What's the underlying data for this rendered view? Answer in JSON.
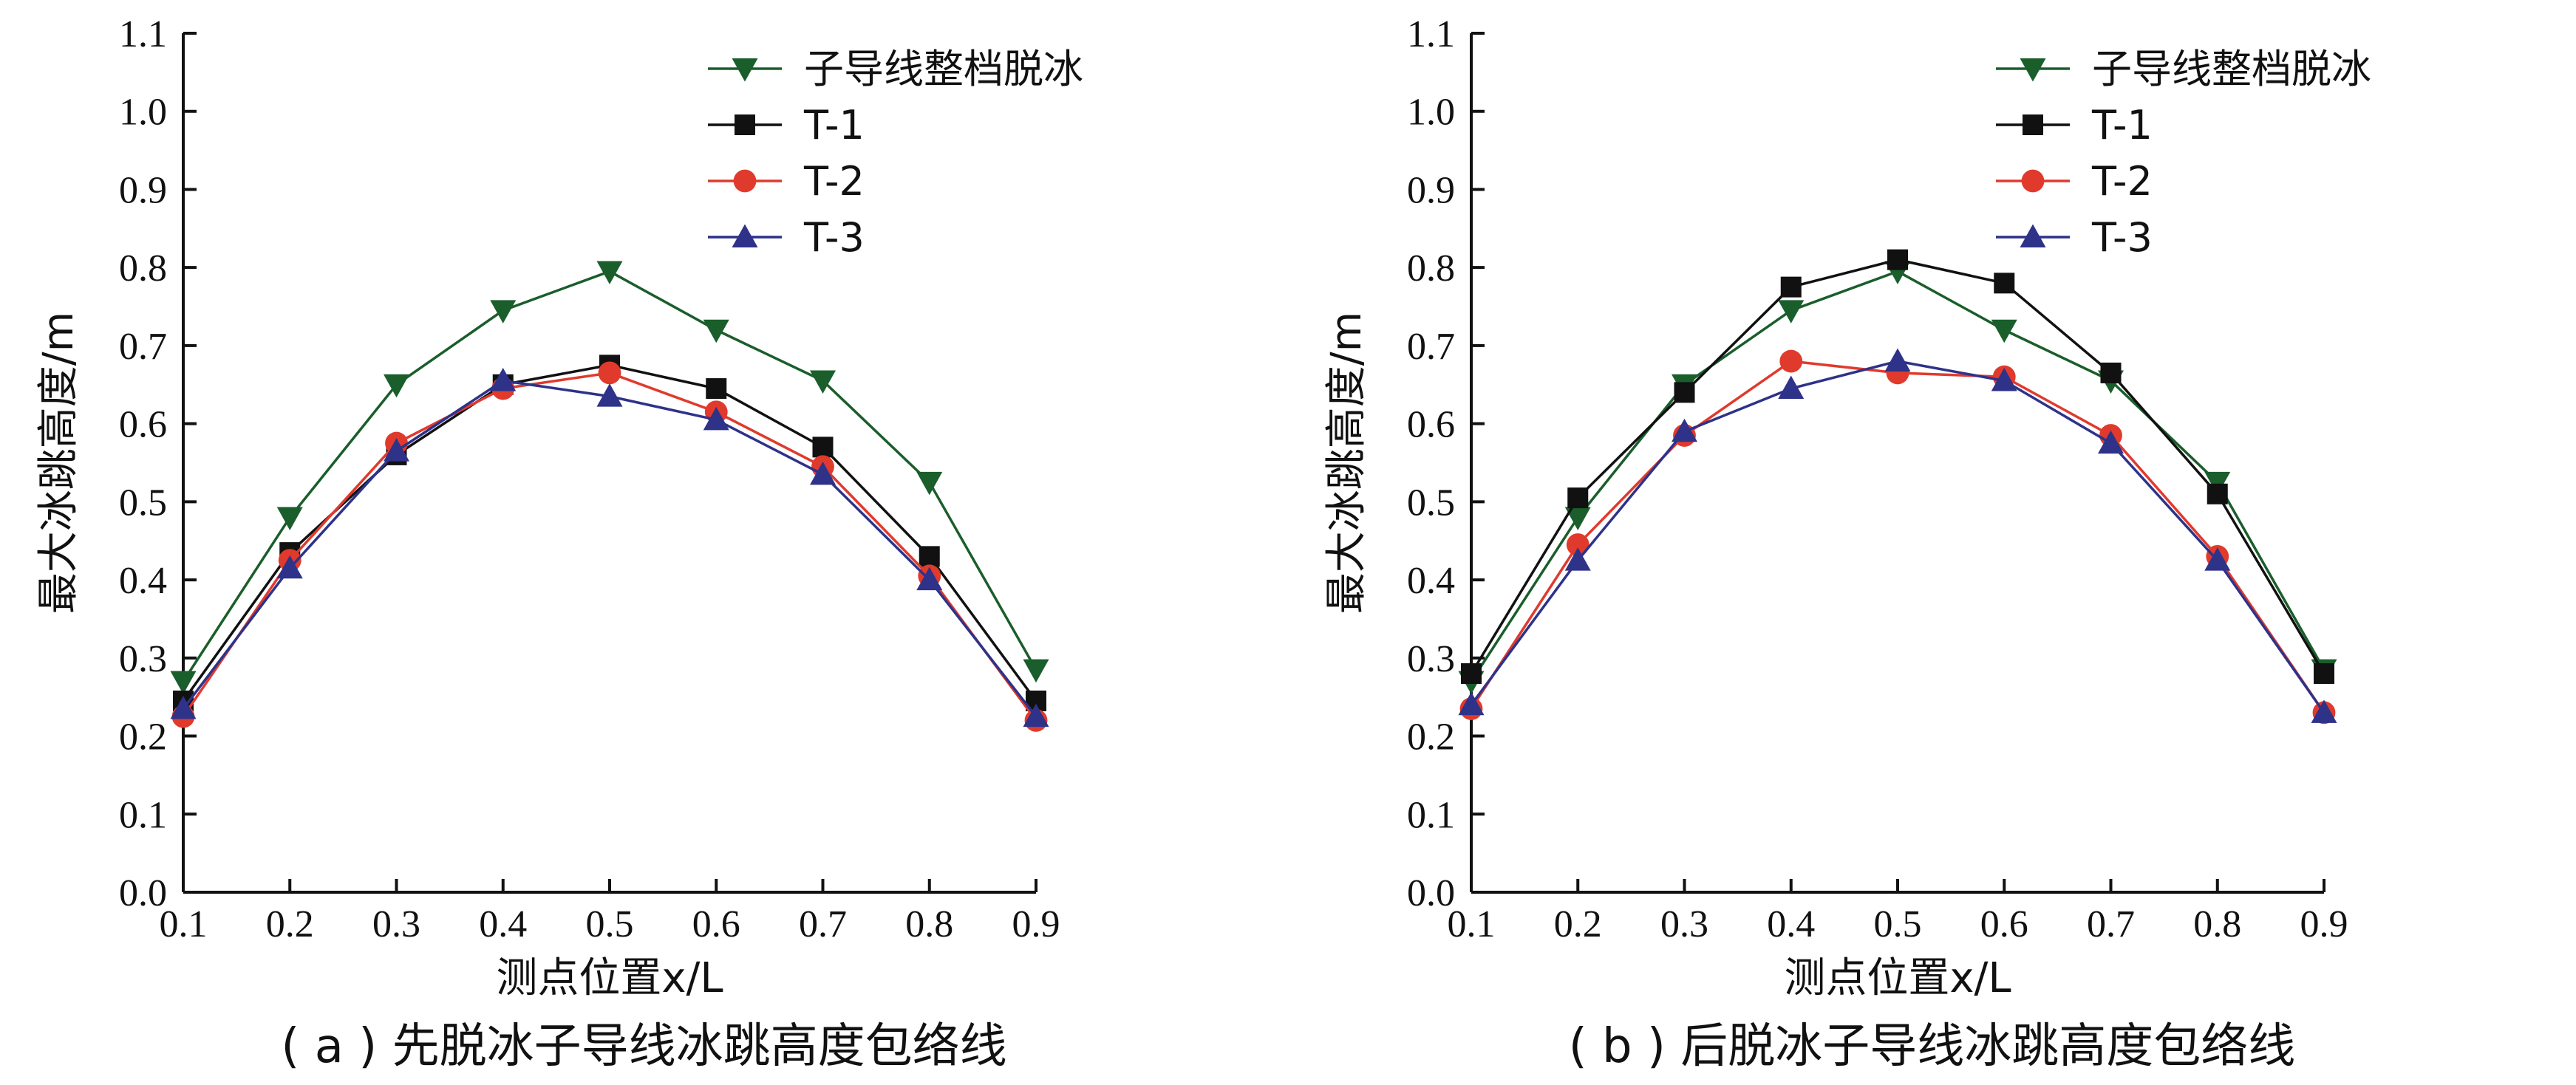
{
  "chart_data": [
    {
      "type": "line",
      "caption": "( a ) 先脱冰子导线冰跳高度包络线",
      "xlabel": "测点位置x/L",
      "ylabel": "最大冰跳高度/m",
      "xlim": [
        0.1,
        0.9
      ],
      "ylim": [
        0.0,
        1.1
      ],
      "x": [
        0.1,
        0.2,
        0.3,
        0.4,
        0.5,
        0.6,
        0.7,
        0.8,
        0.9
      ],
      "xticks": [
        "0.1",
        "0.2",
        "0.3",
        "0.4",
        "0.5",
        "0.6",
        "0.7",
        "0.8",
        "0.9"
      ],
      "yticks": [
        "0.0",
        "0.1",
        "0.2",
        "0.3",
        "0.4",
        "0.5",
        "0.6",
        "0.7",
        "0.8",
        "0.9",
        "1.0",
        "1.1"
      ],
      "grid": false,
      "legend_position": "top-right",
      "series": [
        {
          "name": "子导线整档脱冰",
          "color": "#1a5e2b",
          "marker": "triangle-down",
          "values": [
            0.27,
            0.48,
            0.65,
            0.745,
            0.795,
            0.72,
            0.655,
            0.525,
            0.285
          ]
        },
        {
          "name": "T-1",
          "color": "#111111",
          "marker": "square",
          "values": [
            0.245,
            0.435,
            0.56,
            0.65,
            0.675,
            0.645,
            0.57,
            0.43,
            0.245
          ]
        },
        {
          "name": "T-2",
          "color": "#e03a2d",
          "marker": "circle",
          "values": [
            0.225,
            0.425,
            0.575,
            0.645,
            0.665,
            0.615,
            0.545,
            0.405,
            0.22
          ]
        },
        {
          "name": "T-3",
          "color": "#2e3289",
          "marker": "triangle-up",
          "values": [
            0.235,
            0.415,
            0.565,
            0.655,
            0.635,
            0.605,
            0.535,
            0.4,
            0.225
          ]
        }
      ]
    },
    {
      "type": "line",
      "caption": "( b ) 后脱冰子导线冰跳高度包络线",
      "xlabel": "测点位置x/L",
      "ylabel": "最大冰跳高度/m",
      "xlim": [
        0.1,
        0.9
      ],
      "ylim": [
        0.0,
        1.1
      ],
      "x": [
        0.1,
        0.2,
        0.3,
        0.4,
        0.5,
        0.6,
        0.7,
        0.8,
        0.9
      ],
      "xticks": [
        "0.1",
        "0.2",
        "0.3",
        "0.4",
        "0.5",
        "0.6",
        "0.7",
        "0.8",
        "0.9"
      ],
      "yticks": [
        "0.0",
        "0.1",
        "0.2",
        "0.3",
        "0.4",
        "0.5",
        "0.6",
        "0.7",
        "0.8",
        "0.9",
        "1.0",
        "1.1"
      ],
      "grid": false,
      "legend_position": "top-right",
      "series": [
        {
          "name": "子导线整档脱冰",
          "color": "#1a5e2b",
          "marker": "triangle-down",
          "values": [
            0.27,
            0.48,
            0.65,
            0.745,
            0.795,
            0.72,
            0.655,
            0.525,
            0.285
          ]
        },
        {
          "name": "T-1",
          "color": "#111111",
          "marker": "square",
          "values": [
            0.28,
            0.505,
            0.64,
            0.775,
            0.81,
            0.78,
            0.665,
            0.51,
            0.28
          ]
        },
        {
          "name": "T-2",
          "color": "#e03a2d",
          "marker": "circle",
          "values": [
            0.235,
            0.445,
            0.585,
            0.68,
            0.665,
            0.66,
            0.585,
            0.43,
            0.23
          ]
        },
        {
          "name": "T-3",
          "color": "#2e3289",
          "marker": "triangle-up",
          "values": [
            0.24,
            0.425,
            0.59,
            0.645,
            0.68,
            0.655,
            0.575,
            0.425,
            0.23
          ]
        }
      ]
    }
  ]
}
